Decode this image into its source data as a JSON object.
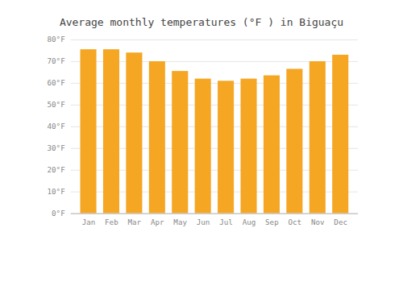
{
  "chart_data": {
    "type": "bar",
    "title": "Average monthly temperatures (°F ) in Biguaçu",
    "categories": [
      "Jan",
      "Feb",
      "Mar",
      "Apr",
      "May",
      "Jun",
      "Jul",
      "Aug",
      "Sep",
      "Oct",
      "Nov",
      "Dec"
    ],
    "values": [
      75.5,
      75.5,
      74,
      70,
      65.5,
      62,
      61,
      62,
      63.5,
      66.5,
      70,
      73
    ],
    "color": "#F5A623",
    "ylim": [
      0,
      80
    ],
    "yticks": [
      {
        "value": 0,
        "label": "0°F"
      },
      {
        "value": 10,
        "label": "10°F"
      },
      {
        "value": 20,
        "label": "20°F"
      },
      {
        "value": 30,
        "label": "30°F"
      },
      {
        "value": 40,
        "label": "40°F"
      },
      {
        "value": 50,
        "label": "50°F"
      },
      {
        "value": 60,
        "label": "60°F"
      },
      {
        "value": 70,
        "label": "70°F"
      },
      {
        "value": 80,
        "label": "80°F"
      }
    ],
    "grid": true
  }
}
